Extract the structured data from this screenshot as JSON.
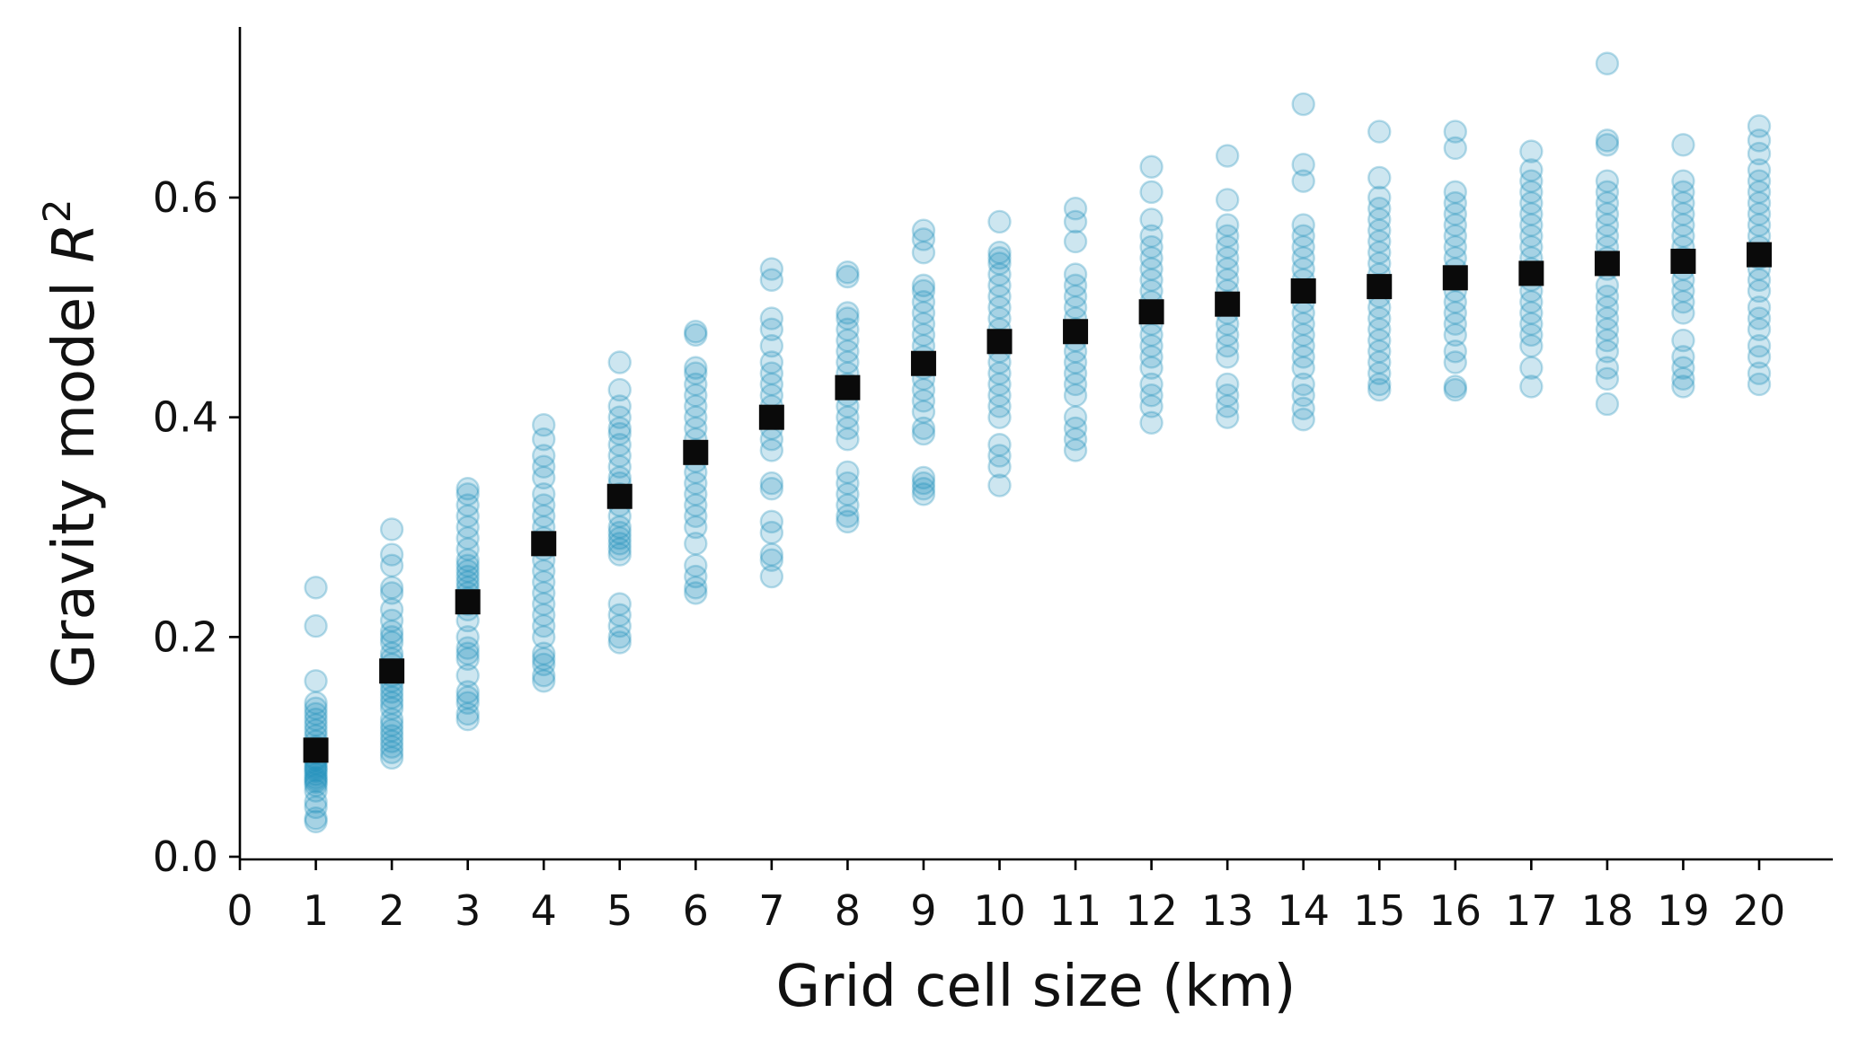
{
  "chart_data": {
    "type": "scatter",
    "xlabel": "Grid cell size (km)",
    "ylabel_main": "Gravity model ",
    "ylabel_var": "R",
    "ylabel_sup": "2",
    "xlim": [
      0,
      21
    ],
    "ylim": [
      0,
      0.75
    ],
    "xticks": [
      0,
      1,
      2,
      3,
      4,
      5,
      6,
      7,
      8,
      9,
      10,
      11,
      12,
      13,
      14,
      15,
      16,
      17,
      18,
      19,
      20
    ],
    "yticks": [
      "0.0",
      "0.2",
      "0.4",
      "0.6"
    ],
    "grid": false,
    "colors": {
      "samples": "#1a8fbb",
      "mean": "#0a0a0a"
    },
    "samples": [
      {
        "x": 1,
        "y": [
          0.245,
          0.21,
          0.16,
          0.14,
          0.135,
          0.13,
          0.125,
          0.12,
          0.115,
          0.11,
          0.105,
          0.1,
          0.098,
          0.095,
          0.09,
          0.088,
          0.085,
          0.082,
          0.08,
          0.078,
          0.075,
          0.072,
          0.07,
          0.068,
          0.065,
          0.06,
          0.05,
          0.045,
          0.035,
          0.032
        ]
      },
      {
        "x": 2,
        "y": [
          0.298,
          0.275,
          0.265,
          0.245,
          0.24,
          0.225,
          0.215,
          0.205,
          0.2,
          0.195,
          0.185,
          0.18,
          0.175,
          0.17,
          0.165,
          0.16,
          0.155,
          0.15,
          0.145,
          0.14,
          0.135,
          0.125,
          0.12,
          0.115,
          0.11,
          0.105,
          0.1,
          0.095,
          0.09
        ]
      },
      {
        "x": 3,
        "y": [
          0.335,
          0.33,
          0.32,
          0.31,
          0.3,
          0.29,
          0.28,
          0.27,
          0.265,
          0.26,
          0.255,
          0.25,
          0.245,
          0.24,
          0.235,
          0.23,
          0.225,
          0.215,
          0.2,
          0.19,
          0.185,
          0.18,
          0.165,
          0.15,
          0.145,
          0.14,
          0.13,
          0.125
        ]
      },
      {
        "x": 4,
        "y": [
          0.393,
          0.38,
          0.365,
          0.355,
          0.345,
          0.33,
          0.32,
          0.31,
          0.3,
          0.29,
          0.28,
          0.27,
          0.26,
          0.25,
          0.24,
          0.23,
          0.22,
          0.21,
          0.2,
          0.185,
          0.18,
          0.175,
          0.165,
          0.16
        ]
      },
      {
        "x": 5,
        "y": [
          0.45,
          0.425,
          0.41,
          0.4,
          0.39,
          0.385,
          0.375,
          0.365,
          0.355,
          0.345,
          0.34,
          0.33,
          0.32,
          0.31,
          0.3,
          0.295,
          0.29,
          0.285,
          0.28,
          0.275,
          0.23,
          0.22,
          0.21,
          0.2,
          0.195
        ]
      },
      {
        "x": 6,
        "y": [
          0.478,
          0.475,
          0.445,
          0.44,
          0.43,
          0.42,
          0.41,
          0.4,
          0.39,
          0.38,
          0.37,
          0.36,
          0.35,
          0.34,
          0.33,
          0.32,
          0.31,
          0.3,
          0.285,
          0.265,
          0.255,
          0.245,
          0.24
        ]
      },
      {
        "x": 7,
        "y": [
          0.535,
          0.525,
          0.49,
          0.48,
          0.465,
          0.45,
          0.44,
          0.43,
          0.42,
          0.41,
          0.4,
          0.39,
          0.38,
          0.37,
          0.34,
          0.335,
          0.305,
          0.295,
          0.275,
          0.27,
          0.255
        ]
      },
      {
        "x": 8,
        "y": [
          0.532,
          0.528,
          0.495,
          0.49,
          0.48,
          0.47,
          0.46,
          0.45,
          0.44,
          0.43,
          0.42,
          0.41,
          0.4,
          0.39,
          0.38,
          0.35,
          0.34,
          0.33,
          0.32,
          0.31,
          0.305
        ]
      },
      {
        "x": 9,
        "y": [
          0.57,
          0.562,
          0.55,
          0.52,
          0.515,
          0.505,
          0.495,
          0.485,
          0.475,
          0.465,
          0.455,
          0.445,
          0.435,
          0.425,
          0.415,
          0.405,
          0.39,
          0.385,
          0.345,
          0.34,
          0.335,
          0.33
        ]
      },
      {
        "x": 10,
        "y": [
          0.578,
          0.55,
          0.545,
          0.54,
          0.53,
          0.52,
          0.51,
          0.5,
          0.49,
          0.48,
          0.47,
          0.46,
          0.45,
          0.44,
          0.43,
          0.42,
          0.41,
          0.4,
          0.375,
          0.365,
          0.355,
          0.338
        ]
      },
      {
        "x": 11,
        "y": [
          0.59,
          0.578,
          0.56,
          0.53,
          0.52,
          0.51,
          0.5,
          0.49,
          0.48,
          0.47,
          0.46,
          0.45,
          0.44,
          0.43,
          0.42,
          0.4,
          0.39,
          0.38,
          0.37
        ]
      },
      {
        "x": 12,
        "y": [
          0.628,
          0.605,
          0.58,
          0.565,
          0.555,
          0.545,
          0.535,
          0.525,
          0.515,
          0.505,
          0.495,
          0.485,
          0.475,
          0.465,
          0.455,
          0.445,
          0.43,
          0.42,
          0.41,
          0.395
        ]
      },
      {
        "x": 13,
        "y": [
          0.638,
          0.598,
          0.575,
          0.565,
          0.555,
          0.545,
          0.535,
          0.525,
          0.515,
          0.505,
          0.495,
          0.485,
          0.475,
          0.465,
          0.455,
          0.43,
          0.42,
          0.41,
          0.4
        ]
      },
      {
        "x": 14,
        "y": [
          0.685,
          0.63,
          0.615,
          0.575,
          0.565,
          0.555,
          0.545,
          0.535,
          0.525,
          0.515,
          0.505,
          0.495,
          0.485,
          0.475,
          0.465,
          0.455,
          0.445,
          0.43,
          0.42,
          0.408,
          0.398
        ]
      },
      {
        "x": 15,
        "y": [
          0.66,
          0.618,
          0.6,
          0.59,
          0.58,
          0.57,
          0.56,
          0.55,
          0.54,
          0.53,
          0.52,
          0.51,
          0.5,
          0.49,
          0.48,
          0.47,
          0.46,
          0.45,
          0.44,
          0.43,
          0.425
        ]
      },
      {
        "x": 16,
        "y": [
          0.66,
          0.645,
          0.605,
          0.595,
          0.585,
          0.575,
          0.565,
          0.555,
          0.545,
          0.535,
          0.525,
          0.515,
          0.505,
          0.495,
          0.485,
          0.475,
          0.46,
          0.45,
          0.428,
          0.425
        ]
      },
      {
        "x": 17,
        "y": [
          0.642,
          0.625,
          0.615,
          0.605,
          0.595,
          0.585,
          0.575,
          0.565,
          0.555,
          0.545,
          0.535,
          0.525,
          0.515,
          0.505,
          0.495,
          0.485,
          0.475,
          0.465,
          0.445,
          0.428
        ]
      },
      {
        "x": 18,
        "y": [
          0.722,
          0.652,
          0.648,
          0.615,
          0.605,
          0.595,
          0.585,
          0.575,
          0.565,
          0.555,
          0.545,
          0.535,
          0.52,
          0.51,
          0.5,
          0.49,
          0.48,
          0.47,
          0.46,
          0.445,
          0.435,
          0.412
        ]
      },
      {
        "x": 19,
        "y": [
          0.648,
          0.615,
          0.605,
          0.595,
          0.585,
          0.575,
          0.565,
          0.555,
          0.545,
          0.535,
          0.525,
          0.515,
          0.505,
          0.495,
          0.47,
          0.455,
          0.445,
          0.435,
          0.428
        ]
      },
      {
        "x": 20,
        "y": [
          0.665,
          0.652,
          0.64,
          0.625,
          0.615,
          0.605,
          0.595,
          0.585,
          0.575,
          0.565,
          0.555,
          0.545,
          0.535,
          0.525,
          0.515,
          0.5,
          0.49,
          0.48,
          0.465,
          0.455,
          0.44,
          0.43
        ]
      }
    ],
    "means": {
      "x": [
        1,
        2,
        3,
        4,
        5,
        6,
        7,
        8,
        9,
        10,
        11,
        12,
        13,
        14,
        15,
        16,
        17,
        18,
        19,
        20
      ],
      "y": [
        0.097,
        0.169,
        0.232,
        0.285,
        0.328,
        0.368,
        0.4,
        0.427,
        0.449,
        0.469,
        0.478,
        0.496,
        0.503,
        0.515,
        0.519,
        0.527,
        0.531,
        0.54,
        0.542,
        0.548
      ]
    }
  }
}
